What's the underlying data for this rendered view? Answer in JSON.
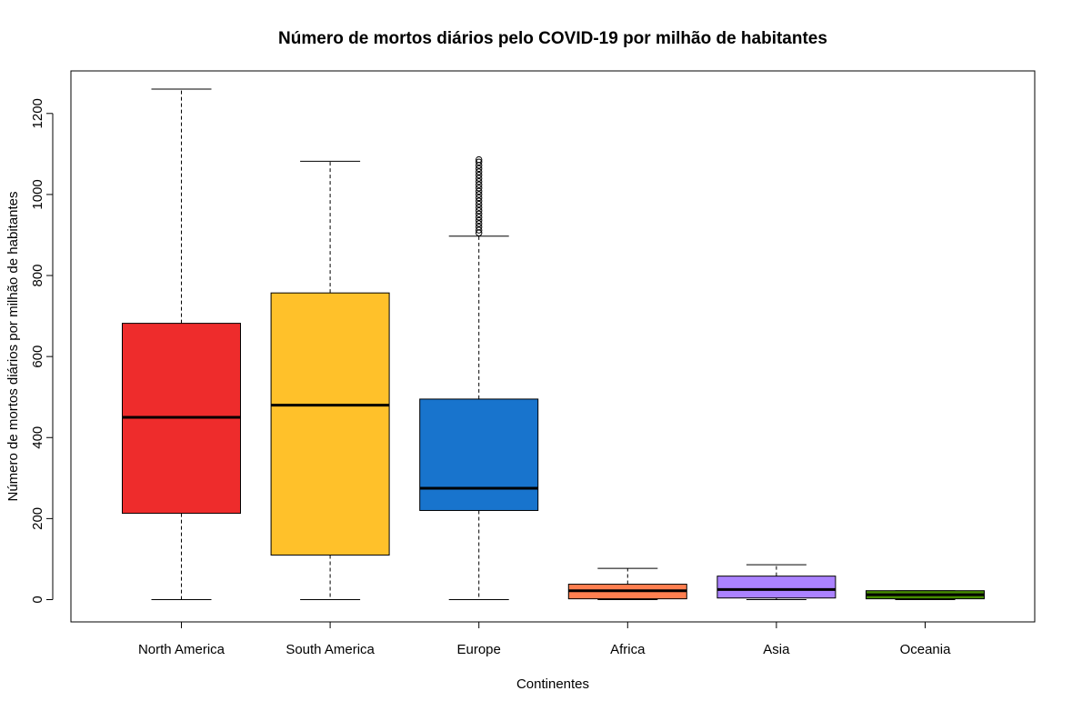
{
  "chart_data": {
    "type": "boxplot",
    "title": "Número de mortos diários pelo COVID-19 por milhão de habitantes",
    "xlabel": "Continentes",
    "ylabel": "Número de mortos diários por milhão de habitantes",
    "y_ticks": [
      0,
      200,
      400,
      600,
      800,
      1000,
      1200
    ],
    "ylim": [
      -55,
      1305
    ],
    "grid": false,
    "categories": [
      "North America",
      "South America",
      "Europe",
      "Africa",
      "Asia",
      "Oceania"
    ],
    "boxes": [
      {
        "category": "North America",
        "color": "#ee2c2c",
        "min": 0,
        "q1": 213,
        "median": 450,
        "q3": 682,
        "max": 1260,
        "outliers": []
      },
      {
        "category": "South America",
        "color": "#ffc12a",
        "min": 0,
        "q1": 110,
        "median": 480,
        "q3": 757,
        "max": 1082,
        "outliers": []
      },
      {
        "category": "Europe",
        "color": "#1874cd",
        "min": 0,
        "q1": 220,
        "median": 275,
        "q3": 495,
        "max": 897,
        "outliers": [
          905,
          912,
          920,
          928,
          936,
          944,
          952,
          960,
          968,
          976,
          984,
          992,
          1000,
          1008,
          1016,
          1024,
          1032,
          1040,
          1048,
          1056,
          1064,
          1072,
          1080,
          1086
        ]
      },
      {
        "category": "Africa",
        "color": "#ff7f50",
        "min": 0,
        "q1": 2,
        "median": 22,
        "q3": 38,
        "max": 77,
        "outliers": []
      },
      {
        "category": "Asia",
        "color": "#ab82ff",
        "min": 0,
        "q1": 4,
        "median": 25,
        "q3": 58,
        "max": 86,
        "outliers": []
      },
      {
        "category": "Oceania",
        "color": "#458b00",
        "min": 0,
        "q1": 2,
        "median": 12,
        "q3": 22,
        "max": 22,
        "outliers": []
      }
    ]
  }
}
